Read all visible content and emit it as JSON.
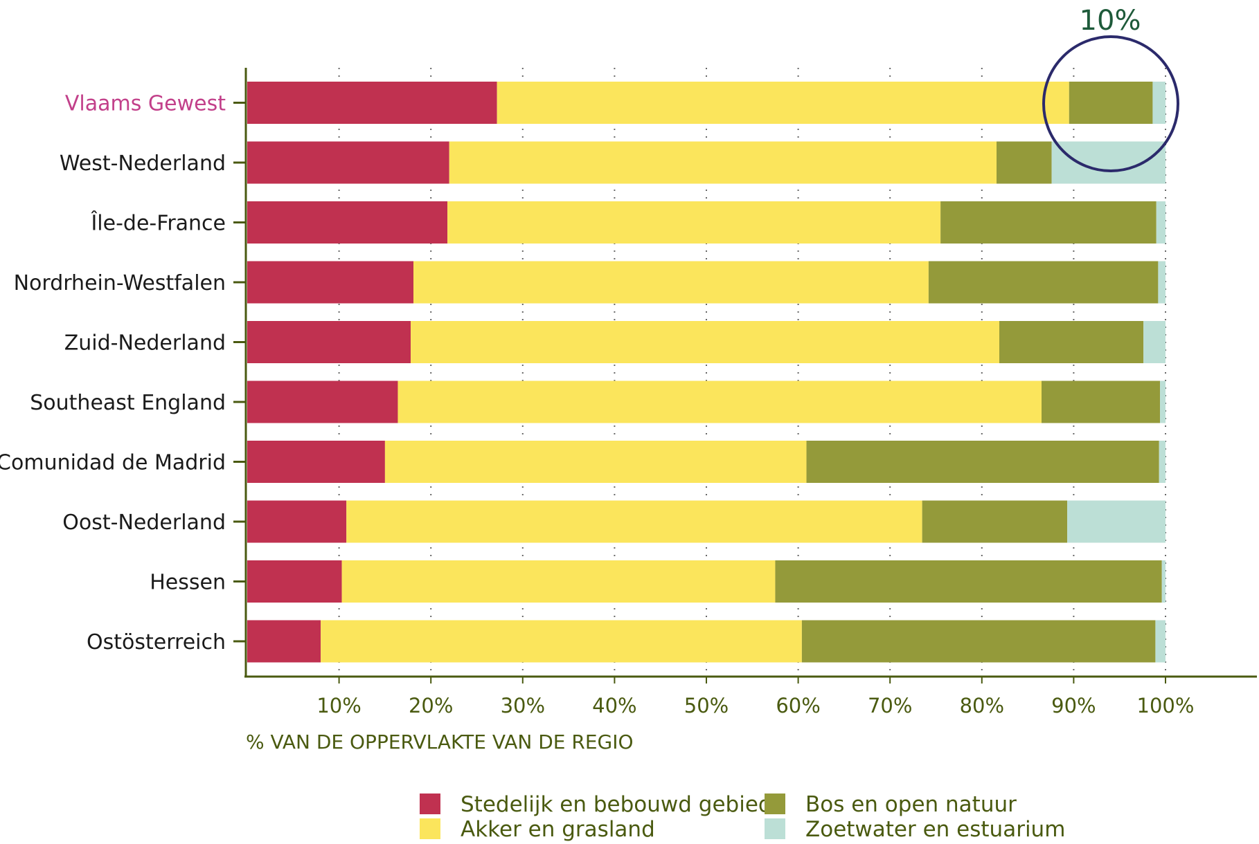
{
  "chart_data": {
    "type": "bar",
    "orientation": "horizontal",
    "stacked": true,
    "categories": [
      "Vlaams Gewest",
      "West-Nederland",
      "Île-de-France",
      "Nordrhein-Westfalen",
      "Zuid-Nederland",
      "Southeast England",
      "Comunidad de Madrid",
      "Oost-Nederland",
      "Hessen",
      "Ostösterreich"
    ],
    "highlight_category": "Vlaams Gewest",
    "series": [
      {
        "name": "Stedelijk en bebouwd gebied",
        "color": "#c03150",
        "values": [
          27.2,
          22.0,
          21.8,
          18.1,
          17.8,
          16.4,
          15.0,
          10.8,
          10.3,
          8.0
        ]
      },
      {
        "name": "Akker en grasland",
        "color": "#fbe55c",
        "values": [
          62.3,
          59.6,
          53.7,
          56.1,
          64.1,
          70.1,
          45.9,
          62.7,
          47.2,
          52.4
        ]
      },
      {
        "name": "Bos en open natuur",
        "color": "#949a3a",
        "values": [
          9.1,
          6.0,
          23.5,
          25.0,
          15.7,
          12.9,
          38.4,
          15.8,
          42.1,
          38.5
        ]
      },
      {
        "name": "Zoetwater en estuarium",
        "color": "#bcdfd6",
        "values": [
          1.4,
          12.4,
          1.0,
          0.8,
          2.4,
          0.6,
          0.7,
          10.7,
          0.4,
          1.1
        ]
      }
    ],
    "xlim": [
      0,
      100
    ],
    "xticks": [
      "10%",
      "20%",
      "30%",
      "40%",
      "50%",
      "60%",
      "70%",
      "80%",
      "90%",
      "100%"
    ],
    "xlabel": "% VAN DE OPPERVLAKTE VAN DE REGIO",
    "ylabel": "",
    "title": "",
    "grid": "vertical dotted",
    "legend": {
      "position": "bottom",
      "items": [
        "Stedelijk en bebouwd gebied",
        "Bos en open natuur",
        "Akker en grasland",
        "Zoetwater en estuarium"
      ]
    },
    "annotation": {
      "text": "10%",
      "shape": "circle",
      "around": "Vlaams Gewest 90–100%"
    }
  }
}
